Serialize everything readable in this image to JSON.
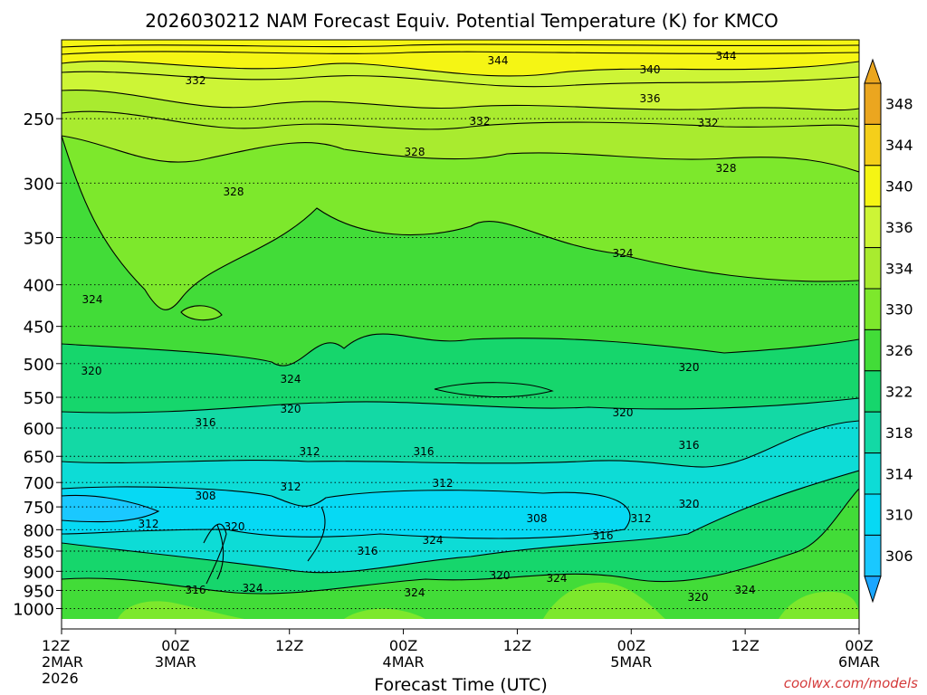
{
  "chart_data": {
    "type": "heatmap",
    "title": "2026030212 NAM Forecast Equiv. Potential Temperature (K) for KMCO",
    "xlabel": "Forecast Time (UTC)",
    "ylabel": "",
    "watermark": "coolwx.com/models",
    "y_scale": "log-pressure",
    "ylim": [
      200,
      1030
    ],
    "grid": "dotted horizontal lines at pressure levels",
    "legend_placement": "right",
    "x_ticks": [
      {
        "lines": [
          "12Z",
          "2MAR",
          "2026"
        ]
      },
      {
        "lines": [
          "00Z",
          "3MAR"
        ]
      },
      {
        "lines": [
          "12Z"
        ]
      },
      {
        "lines": [
          "00Z",
          "4MAR"
        ]
      },
      {
        "lines": [
          "12Z"
        ]
      },
      {
        "lines": [
          "00Z",
          "5MAR"
        ]
      },
      {
        "lines": [
          "12Z"
        ]
      },
      {
        "lines": [
          "00Z",
          "6MAR"
        ]
      }
    ],
    "y_ticks": [
      250,
      300,
      350,
      400,
      450,
      500,
      550,
      600,
      650,
      700,
      750,
      800,
      850,
      900,
      950,
      1000
    ],
    "colorbar": {
      "labels": [
        "348",
        "344",
        "340",
        "336",
        "334",
        "330",
        "326",
        "322",
        "318",
        "314",
        "310",
        "306"
      ],
      "colors": [
        "#eba61f",
        "#f5cf1a",
        "#f5f514",
        "#cdf536",
        "#a9eb2f",
        "#7de82c",
        "#42dc38",
        "#16d66c",
        "#13d9a5",
        "#0ddcd6",
        "#06d9f4",
        "#1ac8ff"
      ]
    },
    "contour_labels": [
      "344",
      "344",
      "340",
      "336",
      "332",
      "332",
      "332",
      "328",
      "328",
      "328",
      "324",
      "324",
      "324",
      "324",
      "320",
      "320",
      "320",
      "320",
      "316",
      "316",
      "316",
      "316",
      "316",
      "312",
      "312",
      "312",
      "312",
      "312",
      "308",
      "308",
      "320",
      "320",
      "320",
      "320",
      "316",
      "324",
      "324",
      "324",
      "324"
    ],
    "field_regions": [
      {
        "temp_k": 342,
        "desc": "upper top band"
      },
      {
        "temp_k": 336,
        "desc": "upper band"
      },
      {
        "temp_k": 330,
        "desc": "upper-mid band"
      },
      {
        "temp_k": 326,
        "desc": "mid troposphere"
      },
      {
        "temp_k": 322,
        "desc": "500-600 hPa"
      },
      {
        "temp_k": 318,
        "desc": "600-680 hPa"
      },
      {
        "temp_k": 313,
        "desc": "680-760 hPa"
      },
      {
        "temp_k": 309,
        "desc": "cold core ~750 hPa"
      },
      {
        "temp_k": 318,
        "desc": "low levels"
      },
      {
        "temp_k": 326,
        "desc": "warm near-surface patches"
      }
    ]
  }
}
